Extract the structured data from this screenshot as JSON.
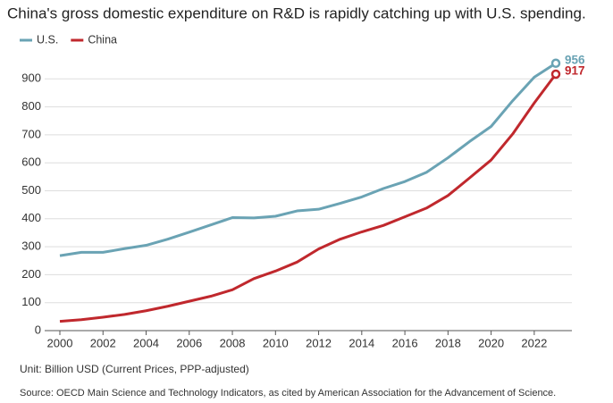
{
  "chart_data": {
    "type": "line",
    "title": "China's gross domestic expenditure on R&D is rapidly catching up with U.S. spending.",
    "note": "Unit: Billion USD (Current Prices, PPP-adjusted)",
    "source": "Source: OECD Main Science and Technology Indicators, as cited by American Association for the Advancement of Science.",
    "x": [
      2000,
      2001,
      2002,
      2003,
      2004,
      2005,
      2006,
      2007,
      2008,
      2009,
      2010,
      2011,
      2012,
      2013,
      2014,
      2015,
      2016,
      2017,
      2018,
      2019,
      2020,
      2021,
      2022,
      2023
    ],
    "series": [
      {
        "name": "U.S.",
        "color": "#6aa3b4",
        "values": [
          268,
          280,
          280,
          293,
          305,
          327,
          352,
          378,
          404,
          403,
          409,
          428,
          434,
          455,
          478,
          508,
          533,
          566,
          618,
          676,
          730,
          822,
          906,
          956
        ]
      },
      {
        "name": "China",
        "color": "#c0282d",
        "values": [
          33,
          39,
          48,
          58,
          71,
          87,
          105,
          123,
          146,
          186,
          213,
          245,
          292,
          327,
          353,
          376,
          407,
          438,
          483,
          546,
          610,
          703,
          814,
          917
        ]
      }
    ],
    "xlim": [
      2000,
      2023
    ],
    "xticks": [
      2000,
      2002,
      2004,
      2006,
      2008,
      2010,
      2012,
      2014,
      2016,
      2018,
      2020,
      2022
    ],
    "ylim": [
      0,
      1000
    ],
    "yticks": [
      0,
      100,
      200,
      300,
      400,
      500,
      600,
      700,
      800,
      900
    ],
    "grid": true,
    "legend": "top-left"
  }
}
